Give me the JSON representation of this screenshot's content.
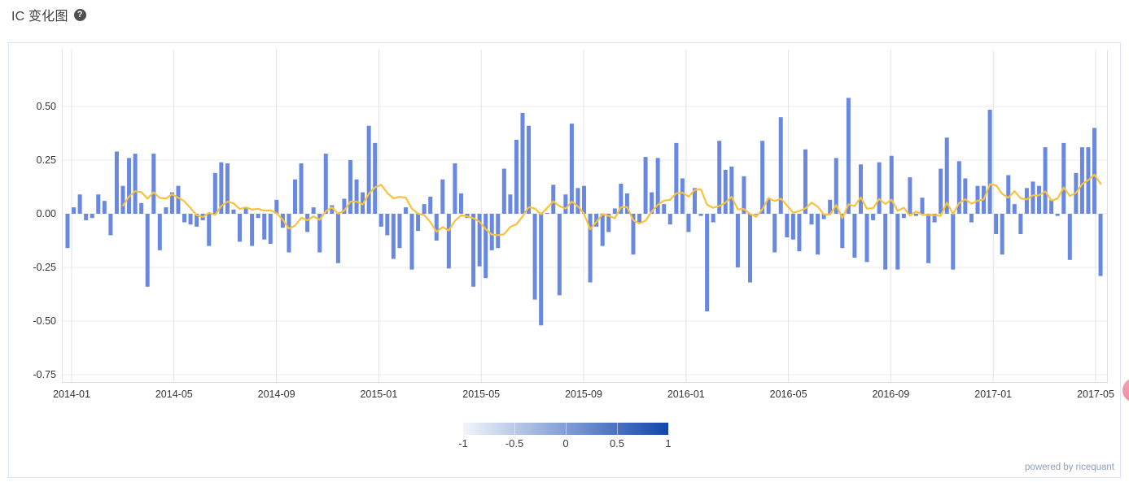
{
  "page": {
    "title": "IC 变化图",
    "help_icon_glyph": "?",
    "footer": "powered by ricequant"
  },
  "colors": {
    "bar": "#6988e0",
    "line": "#fac13c",
    "grid_h": "#ebebeb",
    "grid_v": "#dfe3e8",
    "axis_line": "#d8dde3",
    "colorbar_start": "#f2f6fb",
    "colorbar_end": "#1245ad",
    "widget_pink": "#f4a2b5",
    "widget_pink_deep": "#ee8ca3"
  },
  "chart_data": {
    "type": "bar",
    "title": "IC 变化图",
    "xlabel": "",
    "ylabel": "",
    "grid": true,
    "ylim": [
      -0.79,
      0.77
    ],
    "y_tick_values": [
      0.5,
      0.25,
      0,
      -0.25,
      -0.5,
      -0.75
    ],
    "y_tick_labels": [
      "0.50",
      "0.25",
      "0.00",
      "-0.25",
      "-0.50",
      "-0.75"
    ],
    "x_tick_labels": [
      "2014-01",
      "2014-05",
      "2014-09",
      "2015-01",
      "2015-05",
      "2015-09",
      "2016-01",
      "2016-05",
      "2016-09",
      "2017-01",
      "2017-05"
    ],
    "series": [
      {
        "name": "bars",
        "type": "bar",
        "values": [
          -0.16,
          0.03,
          0.09,
          -0.03,
          -0.02,
          0.09,
          0.06,
          -0.1,
          0.29,
          0.13,
          0.26,
          0.28,
          0.05,
          -0.34,
          0.28,
          -0.17,
          0.03,
          0.1,
          0.13,
          -0.04,
          -0.05,
          -0.06,
          -0.03,
          -0.15,
          0.19,
          0.24,
          0.235,
          0.02,
          -0.13,
          0.03,
          -0.15,
          -0.02,
          -0.12,
          -0.14,
          0.065,
          -0.065,
          -0.18,
          0.16,
          0.235,
          -0.085,
          0.03,
          -0.18,
          0.28,
          0.04,
          -0.23,
          0.07,
          0.25,
          0.16,
          0.1,
          0.41,
          0.33,
          -0.06,
          -0.1,
          -0.21,
          -0.16,
          0.03,
          -0.26,
          -0.08,
          0.045,
          0.08,
          -0.125,
          0.16,
          -0.255,
          0.235,
          0.095,
          -0.02,
          -0.34,
          -0.245,
          -0.3,
          -0.17,
          -0.16,
          0.21,
          0.09,
          0.345,
          0.47,
          0.41,
          -0.4,
          -0.52,
          0.0,
          0.135,
          -0.38,
          0.09,
          0.42,
          0.12,
          0.13,
          -0.32,
          -0.06,
          -0.15,
          -0.085,
          0.025,
          0.14,
          0.095,
          -0.19,
          -0.04,
          0.265,
          0.1,
          0.26,
          0.045,
          -0.05,
          0.33,
          0.165,
          -0.085,
          0.12,
          -0.01,
          -0.455,
          -0.04,
          0.34,
          0.205,
          0.22,
          -0.25,
          0.175,
          -0.32,
          -0.005,
          0.34,
          0.07,
          -0.18,
          0.45,
          -0.11,
          -0.12,
          -0.175,
          0.3,
          -0.05,
          -0.19,
          -0.025,
          0.065,
          0.26,
          -0.16,
          0.54,
          -0.205,
          0.23,
          -0.225,
          -0.03,
          0.24,
          -0.26,
          0.27,
          -0.26,
          -0.02,
          0.17,
          -0.01,
          0.075,
          -0.23,
          -0.04,
          0.21,
          0.355,
          -0.26,
          0.245,
          0.165,
          -0.04,
          0.13,
          0.13,
          0.485,
          -0.095,
          -0.19,
          0.18,
          0.045,
          -0.095,
          0.12,
          0.15,
          0.13,
          0.31,
          0.065,
          -0.01,
          0.33,
          -0.215,
          0.19,
          0.31,
          0.31,
          0.4,
          -0.29
        ]
      },
      {
        "name": "trend_line",
        "type": "line",
        "derived": "trailing_mean",
        "window": 10
      }
    ],
    "colorbar_legend": {
      "min": -1,
      "max": 1,
      "tick_labels": [
        "-1",
        "-0.5",
        "0",
        "0.5",
        "1"
      ],
      "orientation": "horizontal"
    }
  }
}
